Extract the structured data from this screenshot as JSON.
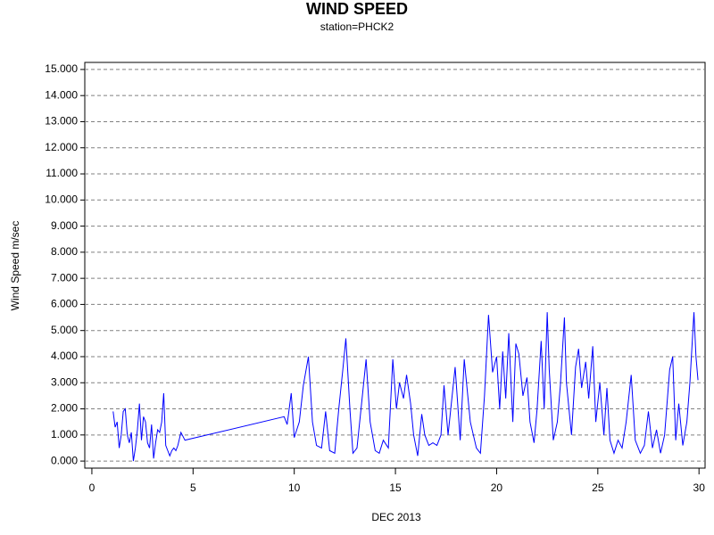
{
  "chart_data": {
    "type": "line",
    "title": "WIND SPEED",
    "subtitle": "station=PHCK2",
    "x_label": "DEC 2013",
    "y_label": "Wind Speed m/sec",
    "xlim": [
      -0.35,
      30.3
    ],
    "ylim": [
      -0.27,
      15.27
    ],
    "xticks": [
      0,
      5,
      10,
      15,
      20,
      25,
      30
    ],
    "yticks": [
      {
        "value": 0,
        "label": "0.000"
      },
      {
        "value": 1,
        "label": "1.000"
      },
      {
        "value": 2,
        "label": "2.000"
      },
      {
        "value": 3,
        "label": "3.000"
      },
      {
        "value": 4,
        "label": "4.000"
      },
      {
        "value": 5,
        "label": "5.000"
      },
      {
        "value": 6,
        "label": "6.000"
      },
      {
        "value": 7,
        "label": "7.000"
      },
      {
        "value": 8,
        "label": "8.000"
      },
      {
        "value": 9,
        "label": "9.000"
      },
      {
        "value": 10,
        "label": "10.000"
      },
      {
        "value": 11,
        "label": "11.000"
      },
      {
        "value": 12,
        "label": "12.000"
      },
      {
        "value": 13,
        "label": "13.000"
      },
      {
        "value": 14,
        "label": "14.000"
      },
      {
        "value": 15,
        "label": "15.000"
      }
    ],
    "grid": true,
    "x": [
      1.05,
      1.15,
      1.25,
      1.35,
      1.45,
      1.55,
      1.65,
      1.75,
      1.85,
      1.95,
      2.05,
      2.15,
      2.25,
      2.35,
      2.45,
      2.55,
      2.65,
      2.75,
      2.85,
      2.95,
      3.05,
      3.15,
      3.25,
      3.35,
      3.45,
      3.55,
      3.65,
      3.75,
      3.85,
      3.95,
      4.05,
      4.15,
      4.25,
      4.4,
      4.6,
      9.5,
      9.65,
      9.85,
      10.0,
      10.25,
      10.45,
      10.7,
      10.9,
      11.1,
      11.35,
      11.55,
      11.75,
      12.0,
      12.2,
      12.4,
      12.55,
      12.75,
      12.9,
      13.1,
      13.3,
      13.55,
      13.75,
      14.0,
      14.2,
      14.4,
      14.65,
      14.87,
      15.05,
      15.2,
      15.4,
      15.55,
      15.75,
      15.9,
      16.1,
      16.3,
      16.45,
      16.65,
      16.85,
      17.05,
      17.25,
      17.4,
      17.6,
      17.95,
      18.2,
      18.4,
      18.7,
      19.0,
      19.2,
      19.4,
      19.6,
      19.8,
      20.0,
      20.15,
      20.3,
      20.45,
      20.6,
      20.8,
      20.95,
      21.1,
      21.3,
      21.5,
      21.65,
      21.85,
      22.0,
      22.2,
      22.35,
      22.5,
      22.6,
      22.8,
      23.0,
      23.15,
      23.35,
      23.45,
      23.7,
      23.9,
      24.05,
      24.2,
      24.4,
      24.55,
      24.75,
      24.9,
      25.1,
      25.3,
      25.45,
      25.6,
      25.8,
      26.0,
      26.2,
      26.4,
      26.65,
      26.85,
      27.1,
      27.3,
      27.5,
      27.7,
      27.9,
      28.1,
      28.3,
      28.55,
      28.7,
      28.85,
      29.0,
      29.2,
      29.4,
      29.55,
      29.75,
      29.85,
      29.95
    ],
    "series": [
      {
        "name": "Wind Speed",
        "color": "#0000ff",
        "values": [
          1.9,
          1.3,
          1.5,
          0.5,
          1.0,
          1.9,
          2.0,
          1.0,
          0.7,
          1.1,
          0.0,
          0.5,
          1.2,
          2.2,
          0.8,
          1.7,
          1.5,
          0.7,
          0.5,
          1.4,
          0.1,
          0.7,
          1.2,
          1.1,
          1.5,
          2.6,
          0.6,
          0.4,
          0.2,
          0.4,
          0.5,
          0.4,
          0.6,
          1.1,
          0.8,
          1.7,
          1.4,
          2.6,
          0.9,
          1.5,
          2.9,
          4.0,
          1.5,
          0.6,
          0.5,
          1.9,
          0.4,
          0.3,
          2.0,
          3.5,
          4.7,
          2.0,
          0.3,
          0.5,
          2.0,
          3.9,
          1.5,
          0.4,
          0.3,
          0.8,
          0.5,
          3.9,
          2.0,
          3.0,
          2.4,
          3.3,
          2.2,
          1.0,
          0.2,
          1.8,
          1.0,
          0.6,
          0.7,
          0.6,
          1.0,
          2.9,
          1.0,
          3.6,
          0.8,
          3.9,
          1.5,
          0.5,
          0.3,
          2.5,
          5.6,
          3.4,
          4.0,
          2.0,
          4.2,
          2.4,
          4.9,
          1.5,
          4.5,
          4.1,
          2.5,
          3.2,
          1.5,
          0.7,
          2.0,
          4.6,
          2.0,
          5.7,
          3.5,
          0.8,
          1.5,
          2.9,
          5.5,
          3.0,
          1.0,
          3.6,
          4.3,
          2.8,
          3.8,
          2.4,
          4.4,
          1.5,
          3.0,
          1.0,
          2.8,
          0.8,
          0.3,
          0.8,
          0.5,
          1.5,
          3.3,
          0.8,
          0.3,
          0.6,
          1.9,
          0.5,
          1.2,
          0.3,
          1.0,
          3.5,
          4.0,
          0.8,
          2.2,
          0.6,
          1.5,
          3.0,
          5.7,
          4.0,
          3.1
        ]
      }
    ]
  }
}
